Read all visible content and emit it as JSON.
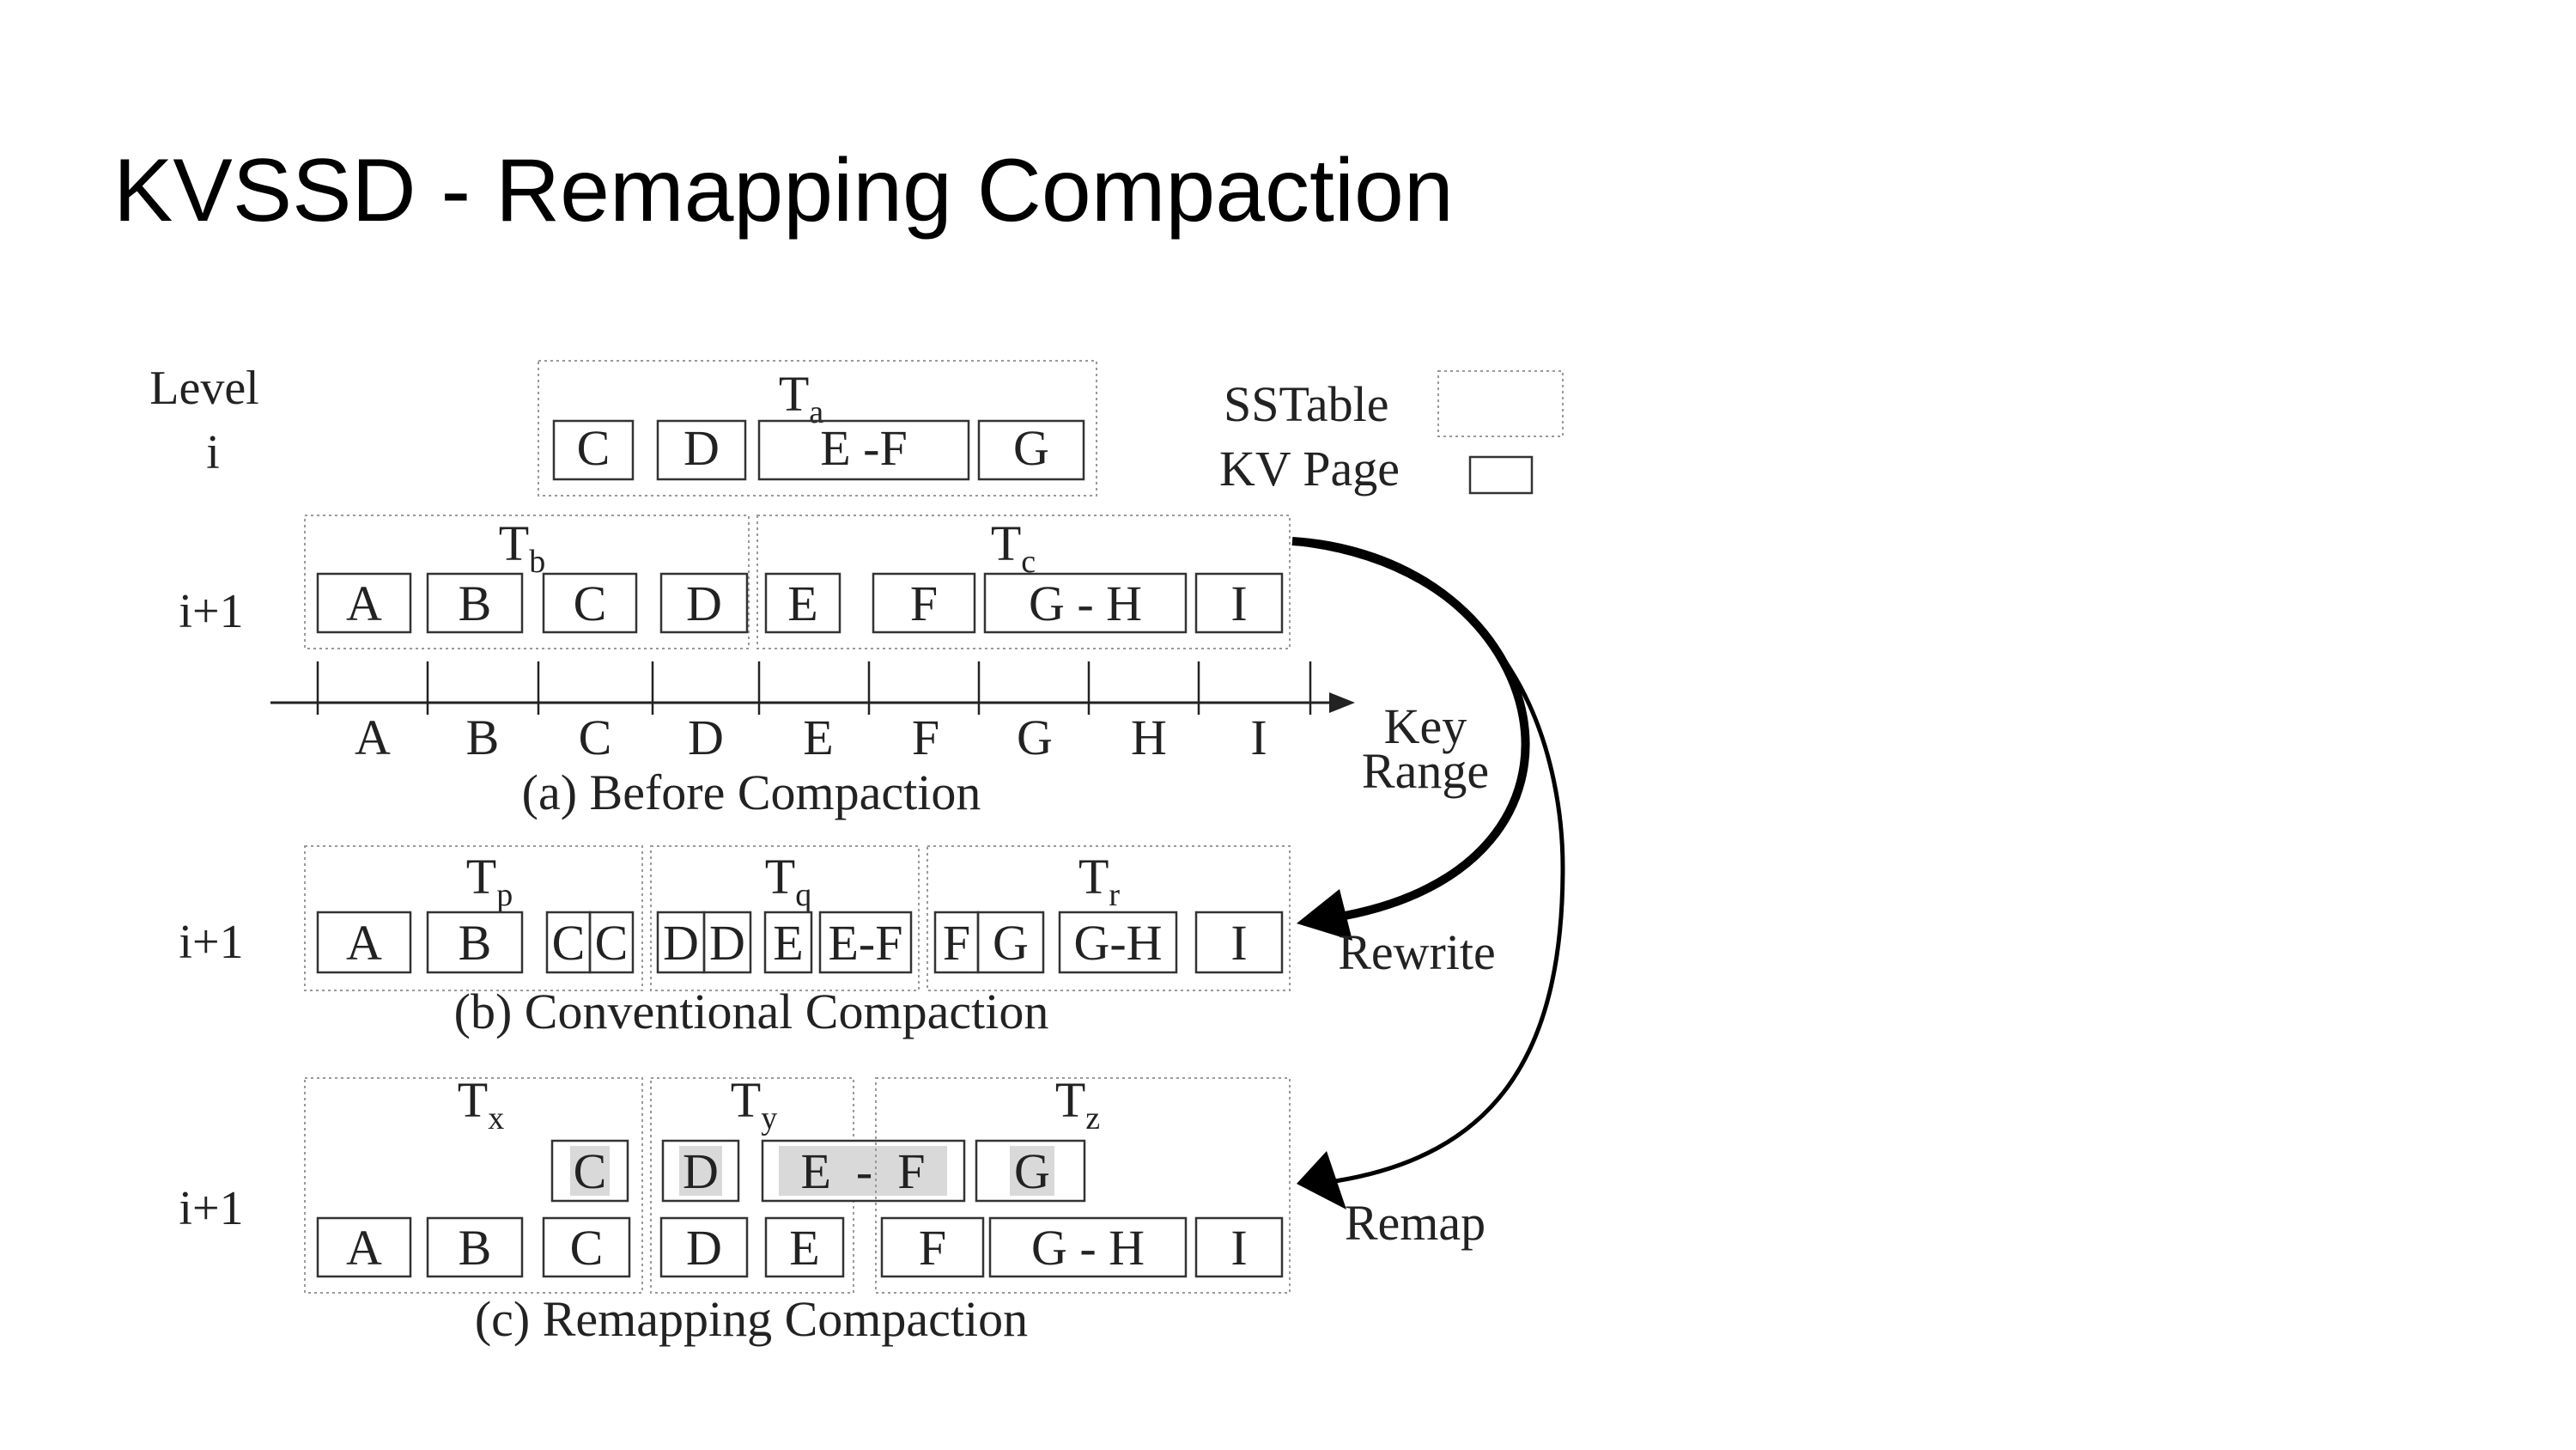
{
  "slide": {
    "title": "KVSSD - Remapping Compaction"
  },
  "legend": {
    "sstable": "SSTable",
    "kv_page": "KV Page"
  },
  "levels": {
    "level_word": "Level",
    "i": "i",
    "i_plus_1": "i+1"
  },
  "axis": {
    "keys": [
      "A",
      "B",
      "C",
      "D",
      "E",
      "F",
      "G",
      "H",
      "I"
    ],
    "label_line1": "Key",
    "label_line2": "Range"
  },
  "captions": {
    "a": "(a) Before Compaction",
    "b": "(b) Conventional Compaction",
    "c": "(c) Remapping Compaction"
  },
  "arrows": {
    "rewrite": "Rewrite",
    "remap": "Remap"
  },
  "colors": {
    "shaded_page": "#d9d9d9",
    "stroke": "#333333",
    "dotted_border": "#999999"
  },
  "tables": {
    "Ta": {
      "base": "T",
      "sub": "a",
      "pages": [
        "C",
        "D",
        "E -F",
        "G"
      ]
    },
    "Tb": {
      "base": "T",
      "sub": "b",
      "pages": [
        "A",
        "B",
        "C",
        "D"
      ]
    },
    "Tc": {
      "base": "T",
      "sub": "c",
      "pages": [
        "E",
        "F",
        "G - H",
        "I"
      ]
    },
    "Tp": {
      "base": "T",
      "sub": "p",
      "pages": [
        "A",
        "B",
        "C",
        "C"
      ]
    },
    "Tq": {
      "base": "T",
      "sub": "q",
      "pages": [
        "D",
        "D",
        "E",
        "E-F"
      ]
    },
    "Tr": {
      "base": "T",
      "sub": "r",
      "pages": [
        "F",
        "G",
        "G-H",
        "I"
      ]
    },
    "Tx": {
      "base": "T",
      "sub": "x",
      "shaded": [
        "C"
      ],
      "pages": [
        "A",
        "B",
        "C"
      ]
    },
    "Ty": {
      "base": "T",
      "sub": "y",
      "shaded": [
        "D",
        "E  -  F"
      ],
      "pages": [
        "D",
        "E"
      ]
    },
    "Tz": {
      "base": "T",
      "sub": "z",
      "shaded": [
        "G"
      ],
      "pages": [
        "F",
        "G - H",
        "I"
      ]
    }
  }
}
